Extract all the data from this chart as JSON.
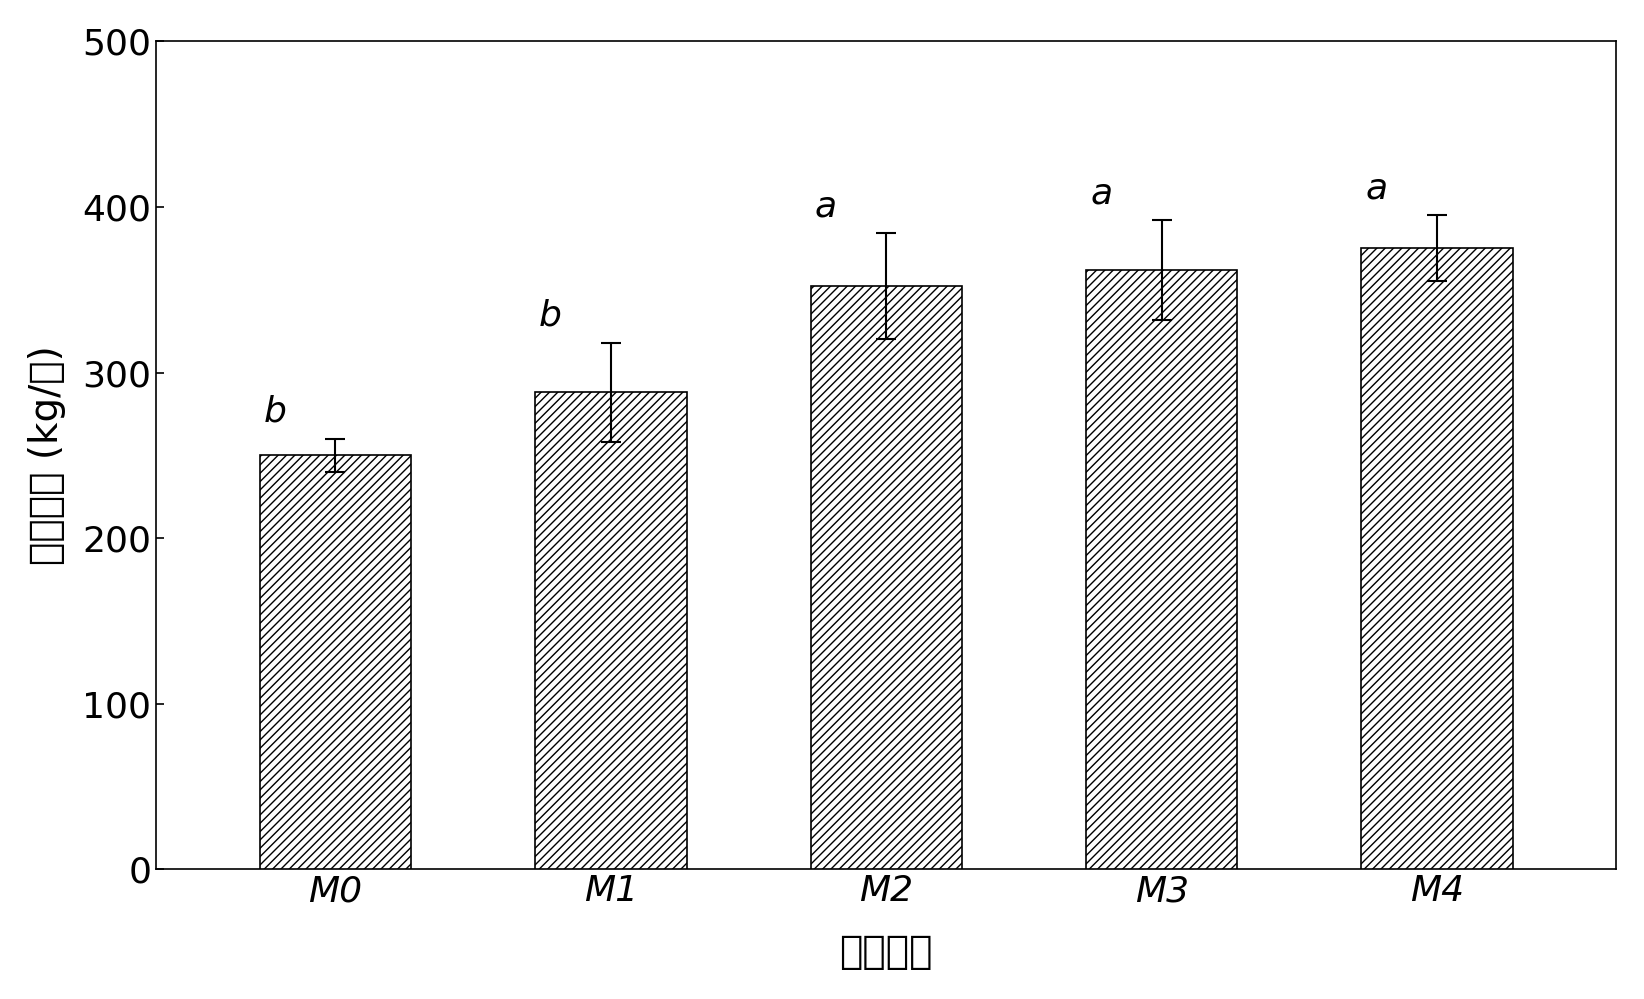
{
  "categories": [
    "M0",
    "M1",
    "M2",
    "M3",
    "M4"
  ],
  "values": [
    250,
    288,
    352,
    362,
    375
  ],
  "errors": [
    10,
    30,
    32,
    30,
    20
  ],
  "sig_labels": [
    "b",
    "b",
    "a",
    "a",
    "a"
  ],
  "ylabel": "玉米产量 (kg/亩)",
  "xlabel": "试验处理",
  "ylim": [
    0,
    500
  ],
  "yticks": [
    0,
    100,
    200,
    300,
    400,
    500
  ],
  "bar_color": "#ffffff",
  "bar_edgecolor": "#000000",
  "hatch": "////",
  "bar_width": 0.55,
  "axis_label_fontsize": 28,
  "tick_fontsize": 26,
  "sig_fontsize": 26,
  "background_color": "#ffffff",
  "figure_width": 16.44,
  "figure_height": 9.99
}
